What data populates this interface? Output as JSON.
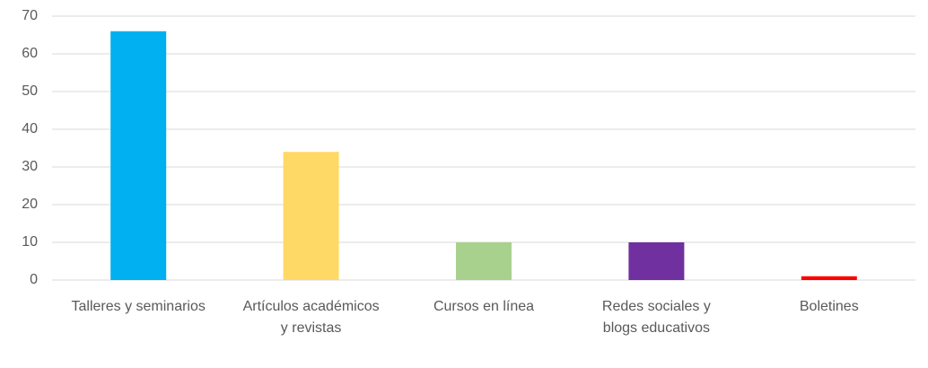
{
  "chart_data": {
    "type": "bar",
    "categories": [
      "Talleres y seminarios",
      "Artículos académicos y revistas",
      "Cursos en línea",
      "Redes sociales y blogs educativos",
      "Boletines"
    ],
    "values": [
      66,
      34,
      10,
      10,
      1
    ],
    "colors": [
      "#00b0f0",
      "#ffd966",
      "#a9d18e",
      "#7030a0",
      "#ff0000"
    ],
    "ylim": [
      0,
      70
    ],
    "yticks": [
      0,
      10,
      20,
      30,
      40,
      50,
      60,
      70
    ],
    "grid": true
  }
}
